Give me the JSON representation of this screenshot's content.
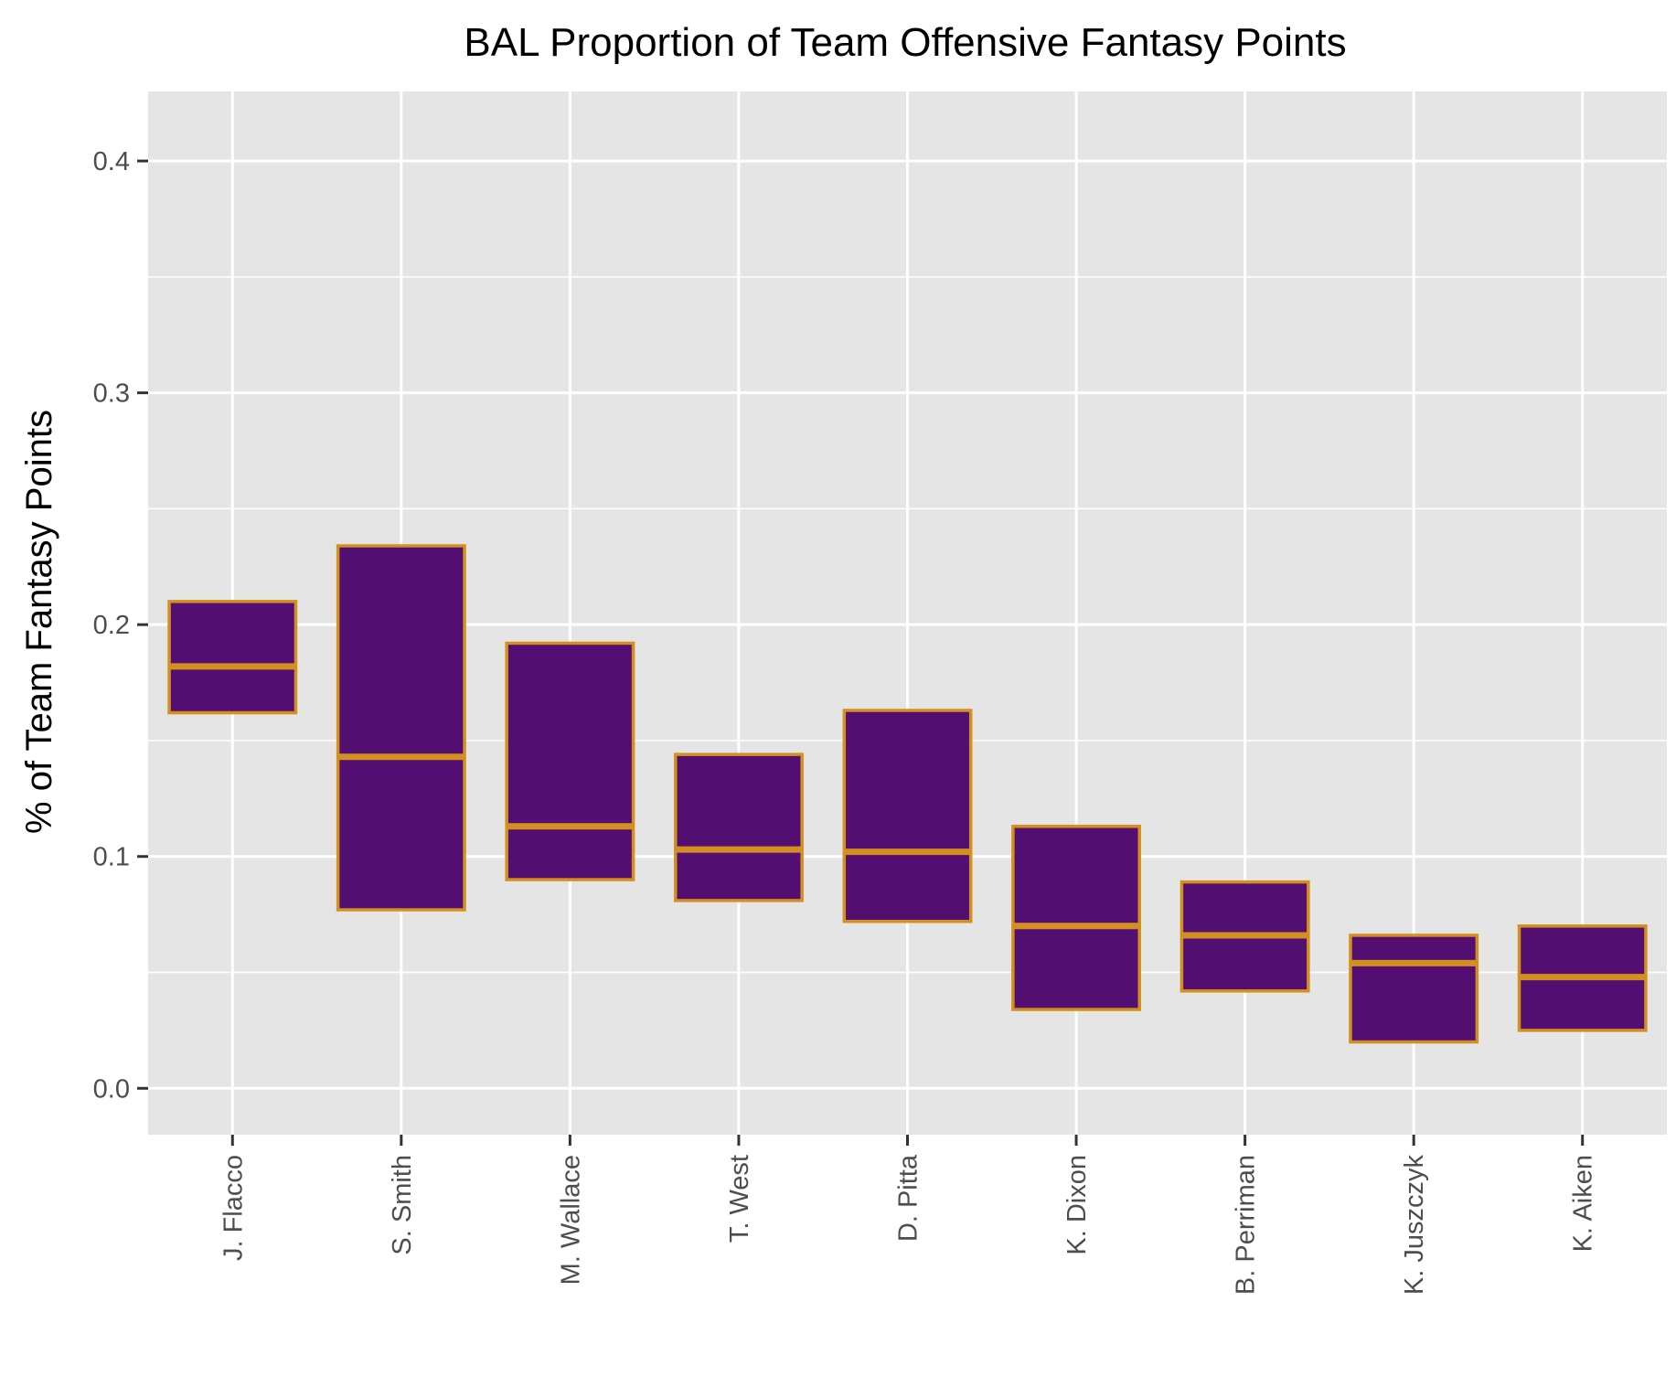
{
  "chart_data": {
    "type": "box",
    "title": "BAL Proportion of Team Offensive Fantasy Points",
    "xlabel": "",
    "ylabel": "% of Team Fantasy Points",
    "ylim": [
      -0.02,
      0.43
    ],
    "yticks": [
      "0.0",
      "0.1",
      "0.2",
      "0.3",
      "0.4"
    ],
    "ytick_values": [
      0.0,
      0.1,
      0.2,
      0.3,
      0.4
    ],
    "grid": true,
    "colors": {
      "panel": "#e5e5e5",
      "grid": "#ffffff",
      "box_fill": "#530e72",
      "box_stroke": "#d4901f",
      "tick": "#333333"
    },
    "categories": [
      "J. Flacco",
      "S. Smith",
      "M. Wallace",
      "T. West",
      "D. Pitta",
      "K. Dixon",
      "B. Perriman",
      "K. Juszczyk",
      "K. Aiken"
    ],
    "boxes": [
      {
        "q1": 0.162,
        "median": 0.182,
        "q3": 0.21
      },
      {
        "q1": 0.077,
        "median": 0.143,
        "q3": 0.234
      },
      {
        "q1": 0.09,
        "median": 0.113,
        "q3": 0.192
      },
      {
        "q1": 0.081,
        "median": 0.103,
        "q3": 0.144
      },
      {
        "q1": 0.072,
        "median": 0.102,
        "q3": 0.163
      },
      {
        "q1": 0.034,
        "median": 0.07,
        "q3": 0.113
      },
      {
        "q1": 0.042,
        "median": 0.066,
        "q3": 0.089
      },
      {
        "q1": 0.02,
        "median": 0.054,
        "q3": 0.066
      },
      {
        "q1": 0.025,
        "median": 0.048,
        "q3": 0.07
      }
    ]
  }
}
